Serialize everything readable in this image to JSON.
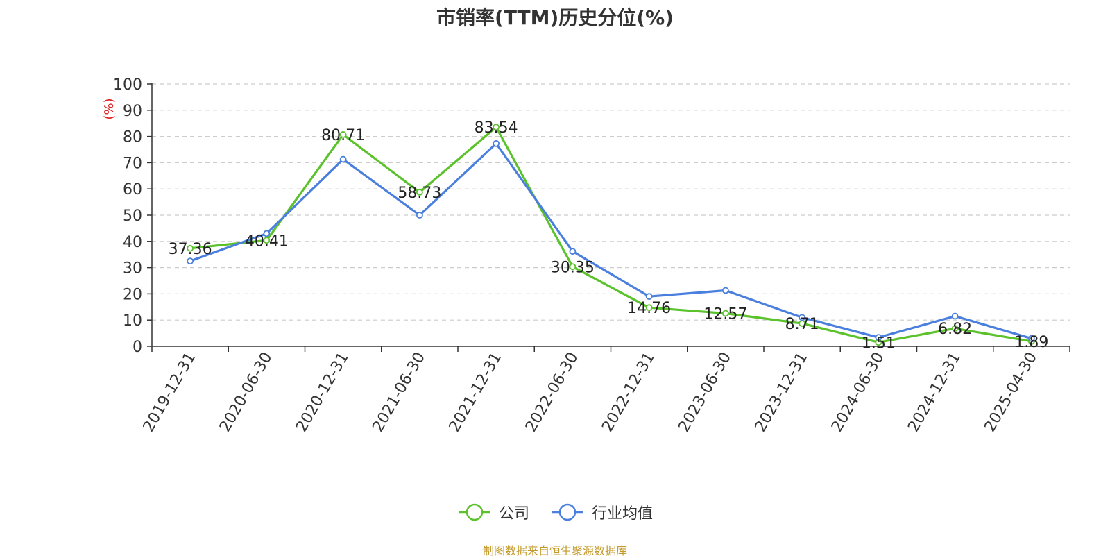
{
  "chart_data": {
    "type": "line",
    "title": "市销率(TTM)历史分位(%)",
    "ylabel": "(%)",
    "xlabel": "",
    "ylim": [
      0,
      100
    ],
    "yticks": [
      "0",
      "10",
      "20",
      "30",
      "40",
      "50",
      "60",
      "70",
      "80",
      "90",
      "100"
    ],
    "grid": true,
    "legend_position": "bottom",
    "categories": [
      "2019-12-31",
      "2020-06-30",
      "2020-12-31",
      "2021-06-30",
      "2021-12-31",
      "2022-06-30",
      "2022-12-31",
      "2023-06-30",
      "2023-12-31",
      "2024-06-30",
      "2024-12-31",
      "2025-04-30"
    ],
    "series": [
      {
        "name": "公司",
        "color": "#5bc22c",
        "values": [
          37.36,
          40.41,
          80.71,
          58.73,
          83.54,
          30.35,
          14.76,
          12.57,
          8.71,
          1.51,
          6.82,
          1.89
        ],
        "labels": [
          "37.36",
          "40.41",
          "80.71",
          "58.73",
          "83.54",
          "30.35",
          "14.76",
          "12.57",
          "8.71",
          "1.51",
          "6.82",
          "1.89"
        ]
      },
      {
        "name": "行业均值",
        "color": "#4a7fde",
        "values": [
          32.5,
          43.0,
          71.3,
          50.0,
          77.3,
          36.2,
          19.0,
          21.3,
          11.0,
          3.4,
          11.5,
          3.0
        ]
      }
    ]
  },
  "source_note": "制图数据来自恒生聚源数据库"
}
